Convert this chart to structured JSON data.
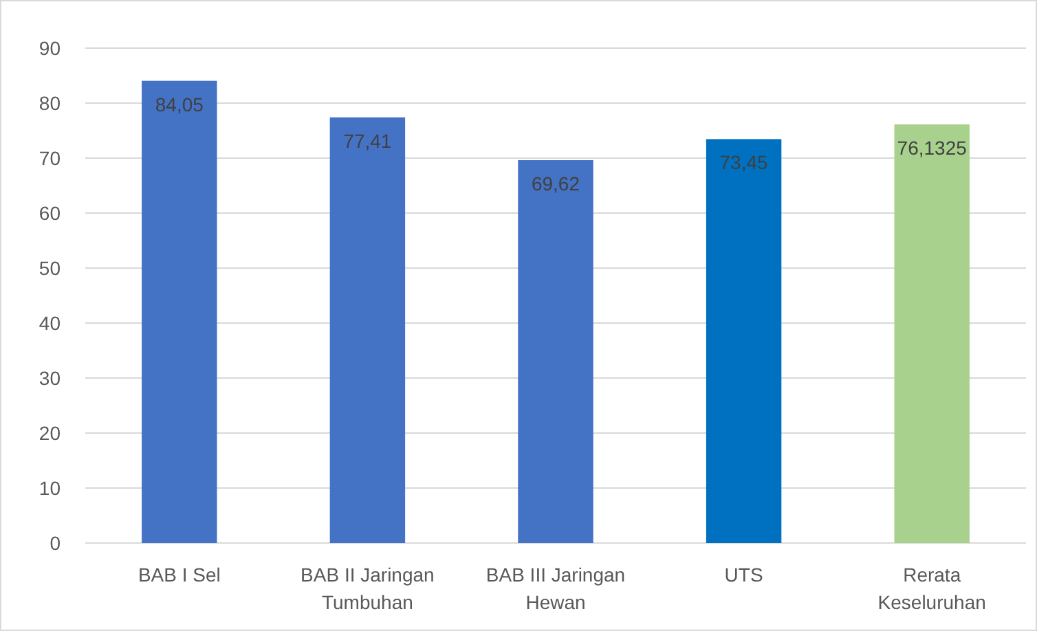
{
  "chart_data": {
    "type": "bar",
    "categories": [
      "BAB I Sel",
      "BAB II Jaringan Tumbuhan",
      "BAB III Jaringan Hewan",
      "UTS",
      "Rerata Keseluruhan"
    ],
    "values": [
      84.05,
      77.41,
      69.62,
      73.45,
      76.1325
    ],
    "colors": [
      "#4472c4",
      "#4472c4",
      "#4472c4",
      "#0070c0",
      "#a9d18e"
    ],
    "value_labels": [
      "84,05",
      "77,41",
      "69,62",
      "73,45",
      "76,1325"
    ],
    "ylim": [
      0,
      90
    ],
    "yticks": [
      0,
      10,
      20,
      30,
      40,
      50,
      60,
      70,
      80,
      90
    ],
    "grid": "y"
  }
}
